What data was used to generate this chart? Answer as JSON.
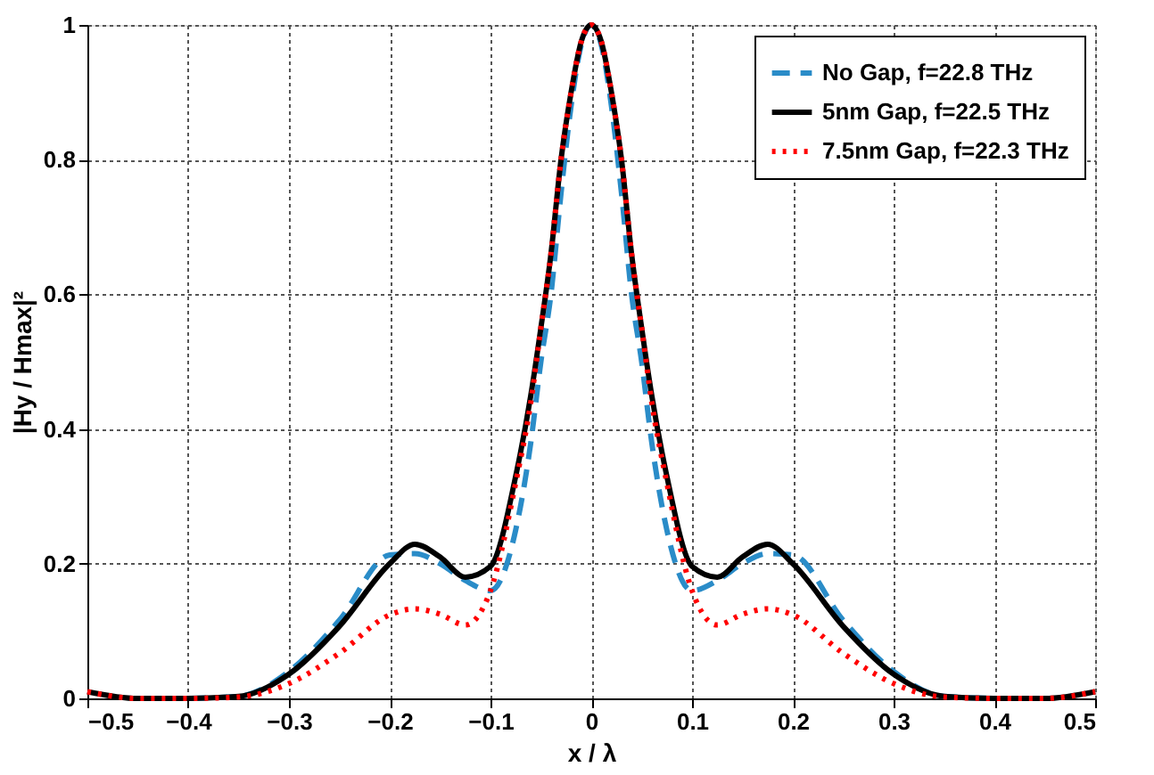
{
  "chart_data": {
    "type": "line",
    "xlabel": "x / λ",
    "ylabel": "|Hy / Hmax|²",
    "x": [
      -0.5,
      -0.45,
      -0.4,
      -0.35,
      -0.3,
      -0.25,
      -0.2,
      -0.175,
      -0.15,
      -0.125,
      -0.1,
      -0.075,
      -0.06,
      -0.05,
      -0.04,
      -0.03,
      -0.02,
      -0.01,
      0,
      0.01,
      0.02,
      0.03,
      0.04,
      0.05,
      0.06,
      0.075,
      0.1,
      0.125,
      0.15,
      0.175,
      0.2,
      0.25,
      0.3,
      0.35,
      0.4,
      0.45,
      0.5
    ],
    "series": [
      {
        "name": "No Gap, f=22.8 THz",
        "color": "#2a8cc8",
        "line_style": "dashed",
        "values": [
          null,
          null,
          0,
          0.003,
          0.04,
          0.116,
          0.213,
          0.215,
          0.2,
          0.175,
          0.16,
          0.25,
          0.38,
          0.5,
          0.6,
          0.75,
          0.88,
          0.97,
          1,
          0.97,
          0.88,
          0.75,
          0.6,
          0.5,
          0.38,
          0.25,
          0.16,
          0.175,
          0.2,
          0.215,
          0.213,
          0.116,
          0.04,
          0.003,
          0,
          null,
          null
        ]
      },
      {
        "name": "5nm Gap, f=22.5 THz",
        "color": "#000000",
        "line_style": "solid",
        "values": [
          0.01,
          0,
          0,
          0.003,
          0.036,
          0.107,
          0.2,
          0.229,
          0.21,
          0.18,
          0.196,
          0.33,
          0.45,
          0.55,
          0.66,
          0.8,
          0.9,
          0.975,
          1,
          0.975,
          0.9,
          0.8,
          0.66,
          0.55,
          0.45,
          0.33,
          0.196,
          0.18,
          0.21,
          0.229,
          0.2,
          0.107,
          0.036,
          0.003,
          0,
          0,
          0.01
        ]
      },
      {
        "name": "7.5nm Gap, f=22.3 THz",
        "color": "#ff0000",
        "line_style": "dotted",
        "values": [
          0.01,
          0,
          0,
          0.002,
          0.022,
          0.067,
          0.124,
          0.133,
          0.125,
          0.109,
          0.16,
          0.32,
          0.44,
          0.55,
          0.66,
          0.8,
          0.9,
          0.975,
          1,
          0.975,
          0.9,
          0.8,
          0.66,
          0.55,
          0.44,
          0.32,
          0.16,
          0.109,
          0.125,
          0.133,
          0.124,
          0.067,
          0.022,
          0.002,
          0,
          0,
          0.01
        ]
      }
    ],
    "xlim": [
      -0.5,
      0.5
    ],
    "xticks": [
      -0.5,
      -0.4,
      -0.3,
      -0.2,
      -0.1,
      0,
      0.1,
      0.2,
      0.3,
      0.4,
      0.5
    ],
    "ylim": [
      0,
      1
    ],
    "yticks": [
      0,
      0.2,
      0.4,
      0.6,
      0.8,
      1
    ],
    "grid": true,
    "legend": "top right",
    "marker": "none"
  }
}
